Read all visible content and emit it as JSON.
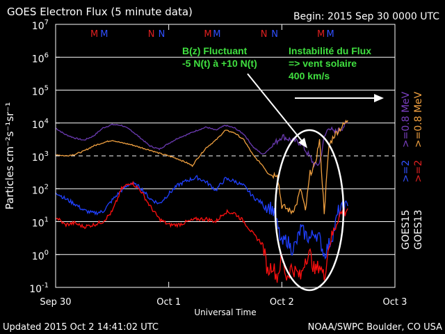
{
  "chart_data": {
    "type": "line",
    "title": "GOES Electron Flux (5 minute data)",
    "begin_label": "Begin: 2015 Sep 30 0000 UTC",
    "xlabel": "Universal Time",
    "ylabel": "Particles cm⁻²s⁻¹sr⁻¹",
    "x_tick_labels": [
      "Sep 30",
      "Oct 1",
      "Oct 2",
      "Oct 3"
    ],
    "x_ticks_hours": [
      0,
      24,
      48,
      72
    ],
    "xlim_hours": [
      0,
      72
    ],
    "y_scale": "log",
    "ylim": [
      0.1,
      10000000
    ],
    "y_tick_labels": [
      {
        "base": "10",
        "exp": "7"
      },
      {
        "base": "10",
        "exp": "6"
      },
      {
        "base": "10",
        "exp": "5"
      },
      {
        "base": "10",
        "exp": "4"
      },
      {
        "base": "10",
        "exp": "3"
      },
      {
        "base": "10",
        "exp": "2"
      },
      {
        "base": "10",
        "exp": "1"
      },
      {
        "base": "10",
        "exp": "0"
      },
      {
        "base": "10",
        "exp": "-1"
      }
    ],
    "y_tick_values": [
      10000000,
      1000000,
      100000,
      10000,
      1000,
      100,
      10,
      1,
      0.1
    ],
    "threshold_line": 1000,
    "grid": true,
    "magnetopause_markers": [
      {
        "label": "M",
        "hour": 8.2,
        "color": "#e02020"
      },
      {
        "label": "M",
        "hour": 10.3,
        "color": "#3050ff"
      },
      {
        "label": "N",
        "hour": 20.3,
        "color": "#e02020"
      },
      {
        "label": "N",
        "hour": 22.5,
        "color": "#3050ff"
      },
      {
        "label": "M",
        "hour": 32.3,
        "color": "#e02020"
      },
      {
        "label": "M",
        "hour": 34.2,
        "color": "#3050ff"
      },
      {
        "label": "N",
        "hour": 44.2,
        "color": "#e02020"
      },
      {
        "label": "N",
        "hour": 46.5,
        "color": "#3050ff"
      },
      {
        "label": "M",
        "hour": 56.3,
        "color": "#e02020"
      },
      {
        "label": "M",
        "hour": 58.3,
        "color": "#3050ff"
      }
    ],
    "right_labels": [
      {
        "text": ">=0.8  MeV",
        "color": "#f0a040"
      },
      {
        "text": ">=2",
        "color": "#e02020"
      },
      {
        "text": "GOES13",
        "color": "#ffffff"
      },
      {
        "text": ">=0.8  MeV",
        "color": "#7a3fc0"
      },
      {
        "text": ">=2",
        "color": "#3050ff"
      },
      {
        "text": "GOES15",
        "color": "#ffffff"
      }
    ],
    "series": [
      {
        "name": "GOES15 >=0.8 MeV",
        "color": "#6a3ab0",
        "x": [
          0,
          2,
          4,
          6,
          8,
          10,
          12,
          14,
          16,
          18,
          20,
          22,
          24,
          26,
          28,
          30,
          32,
          34,
          36,
          38,
          40,
          42,
          44,
          46,
          48,
          50,
          52,
          54,
          55,
          56,
          57,
          58,
          59,
          60,
          62
        ],
        "y": [
          7000,
          4500,
          3500,
          3000,
          4000,
          7000,
          9000,
          8500,
          6000,
          3500,
          2000,
          1600,
          2400,
          3500,
          4500,
          6000,
          7500,
          6000,
          8500,
          7000,
          4500,
          1800,
          1100,
          2000,
          4000,
          3000,
          2500,
          900,
          500,
          600,
          3500,
          8000,
          5000,
          6000,
          10000
        ]
      },
      {
        "name": "GOES13 >=0.8 MeV",
        "color": "#f0a040",
        "x": [
          0,
          2,
          4,
          6,
          8,
          10,
          12,
          14,
          16,
          18,
          20,
          22,
          24,
          26,
          28,
          29,
          30,
          32,
          34,
          36,
          38,
          40,
          42,
          44,
          45,
          46,
          47,
          48,
          49,
          50,
          51,
          52,
          53,
          54,
          55,
          56,
          57,
          58,
          59,
          60,
          62
        ],
        "y": [
          1100,
          1000,
          1100,
          1400,
          2000,
          2500,
          3000,
          2500,
          2200,
          1800,
          1500,
          1200,
          1000,
          800,
          600,
          500,
          800,
          1800,
          3000,
          6000,
          5000,
          3000,
          1000,
          500,
          300,
          250,
          300,
          30,
          25,
          20,
          30,
          100,
          20,
          300,
          500,
          3000,
          20,
          2000,
          4000,
          6000,
          12000
        ]
      },
      {
        "name": "GOES15 >=2 MeV",
        "color": "#2040ff",
        "x": [
          0,
          2,
          4,
          6,
          8,
          10,
          12,
          14,
          16,
          18,
          20,
          22,
          24,
          26,
          28,
          30,
          32,
          34,
          36,
          38,
          40,
          42,
          44,
          46,
          47,
          48,
          49,
          50,
          51,
          52,
          53,
          54,
          55,
          56,
          57,
          58,
          59,
          60,
          62
        ],
        "y": [
          80,
          50,
          35,
          22,
          18,
          20,
          45,
          90,
          150,
          110,
          50,
          35,
          70,
          130,
          180,
          220,
          160,
          90,
          200,
          170,
          120,
          55,
          35,
          25,
          8,
          2,
          3,
          1.5,
          2,
          6,
          4,
          3,
          5,
          3,
          1,
          2,
          5,
          20,
          30
        ]
      },
      {
        "name": "GOES13 >=2 MeV",
        "color": "#ff1010",
        "x": [
          0,
          2,
          4,
          6,
          8,
          10,
          12,
          14,
          16,
          18,
          20,
          22,
          24,
          26,
          28,
          30,
          32,
          34,
          36,
          38,
          40,
          42,
          44,
          45,
          46,
          47,
          48,
          49,
          50,
          51,
          52,
          53,
          54,
          55,
          56,
          57,
          58,
          59,
          60,
          62
        ],
        "y": [
          14,
          8,
          9,
          7,
          8,
          10,
          20,
          100,
          160,
          90,
          30,
          12,
          8,
          8,
          10,
          12,
          12,
          10,
          20,
          18,
          10,
          4,
          2,
          0.3,
          0.5,
          0.2,
          0.8,
          0.2,
          0.4,
          0.3,
          0.2,
          0.8,
          1,
          0.3,
          0.5,
          0.2,
          2,
          5,
          15,
          25
        ]
      }
    ]
  },
  "annotations": {
    "bz_line1": "B(z) Fluctuant",
    "bz_line2": "-5 N(t) à +10 N(t)",
    "flux_line1": "Instabilité du Flux",
    "flux_line2": "=> vent solaire",
    "flux_line3": "400 km/s"
  },
  "footer": {
    "updated": "Updated 2015 Oct  2 14:41:02 UTC",
    "credit": "NOAA/SWPC Boulder, CO USA"
  }
}
